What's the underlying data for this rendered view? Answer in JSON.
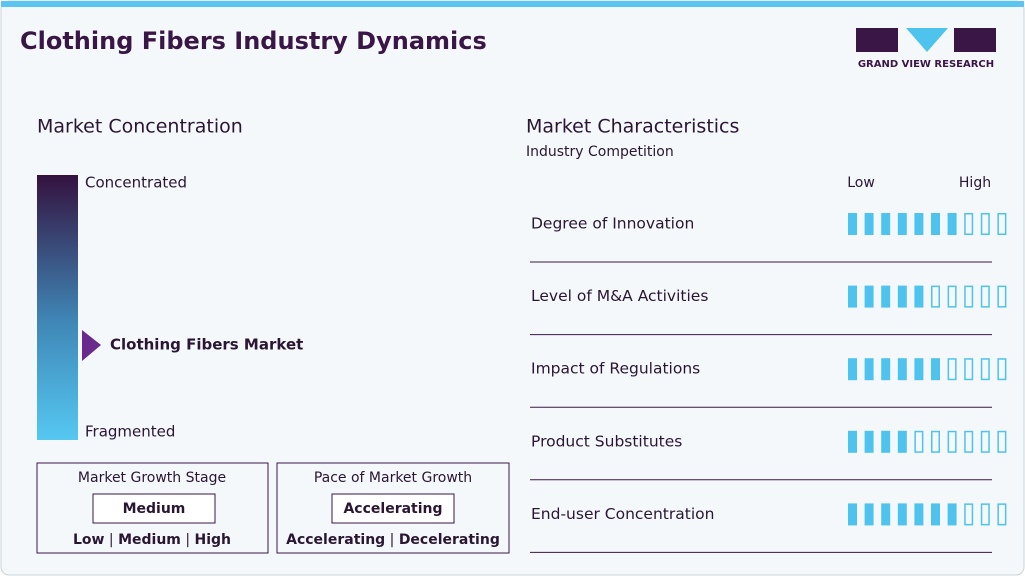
{
  "header": {
    "title": "Clothing Fibers Industry Dynamics",
    "logo": "GRAND VIEW RESEARCH"
  },
  "concentration": {
    "title": "Market Concentration",
    "top_label": "Concentrated",
    "bottom_label": "Fragmented",
    "marker_label": "Clothing Fibers Market"
  },
  "growth_stage": {
    "title": "Market Growth Stage",
    "value": "Medium",
    "options": [
      "Low",
      "Medium",
      "High"
    ]
  },
  "growth_pace": {
    "title": "Pace of Market Growth",
    "value": "Accelerating",
    "options": [
      "Accelerating",
      "Decelerating"
    ]
  },
  "characteristics": {
    "title": "Market Characteristics",
    "subtitle": "Industry Competition",
    "low_label": "Low",
    "high_label": "High",
    "max": 10,
    "color": "#4dc3ee",
    "rows": [
      {
        "label": "Degree of Innovation",
        "level": 7
      },
      {
        "label": "Level of M&A Activities",
        "level": 5
      },
      {
        "label": "Impact of Regulations",
        "level": 6
      },
      {
        "label": "Product Substitutes",
        "level": 4
      },
      {
        "label": "End-user Concentration",
        "level": 7
      }
    ]
  }
}
